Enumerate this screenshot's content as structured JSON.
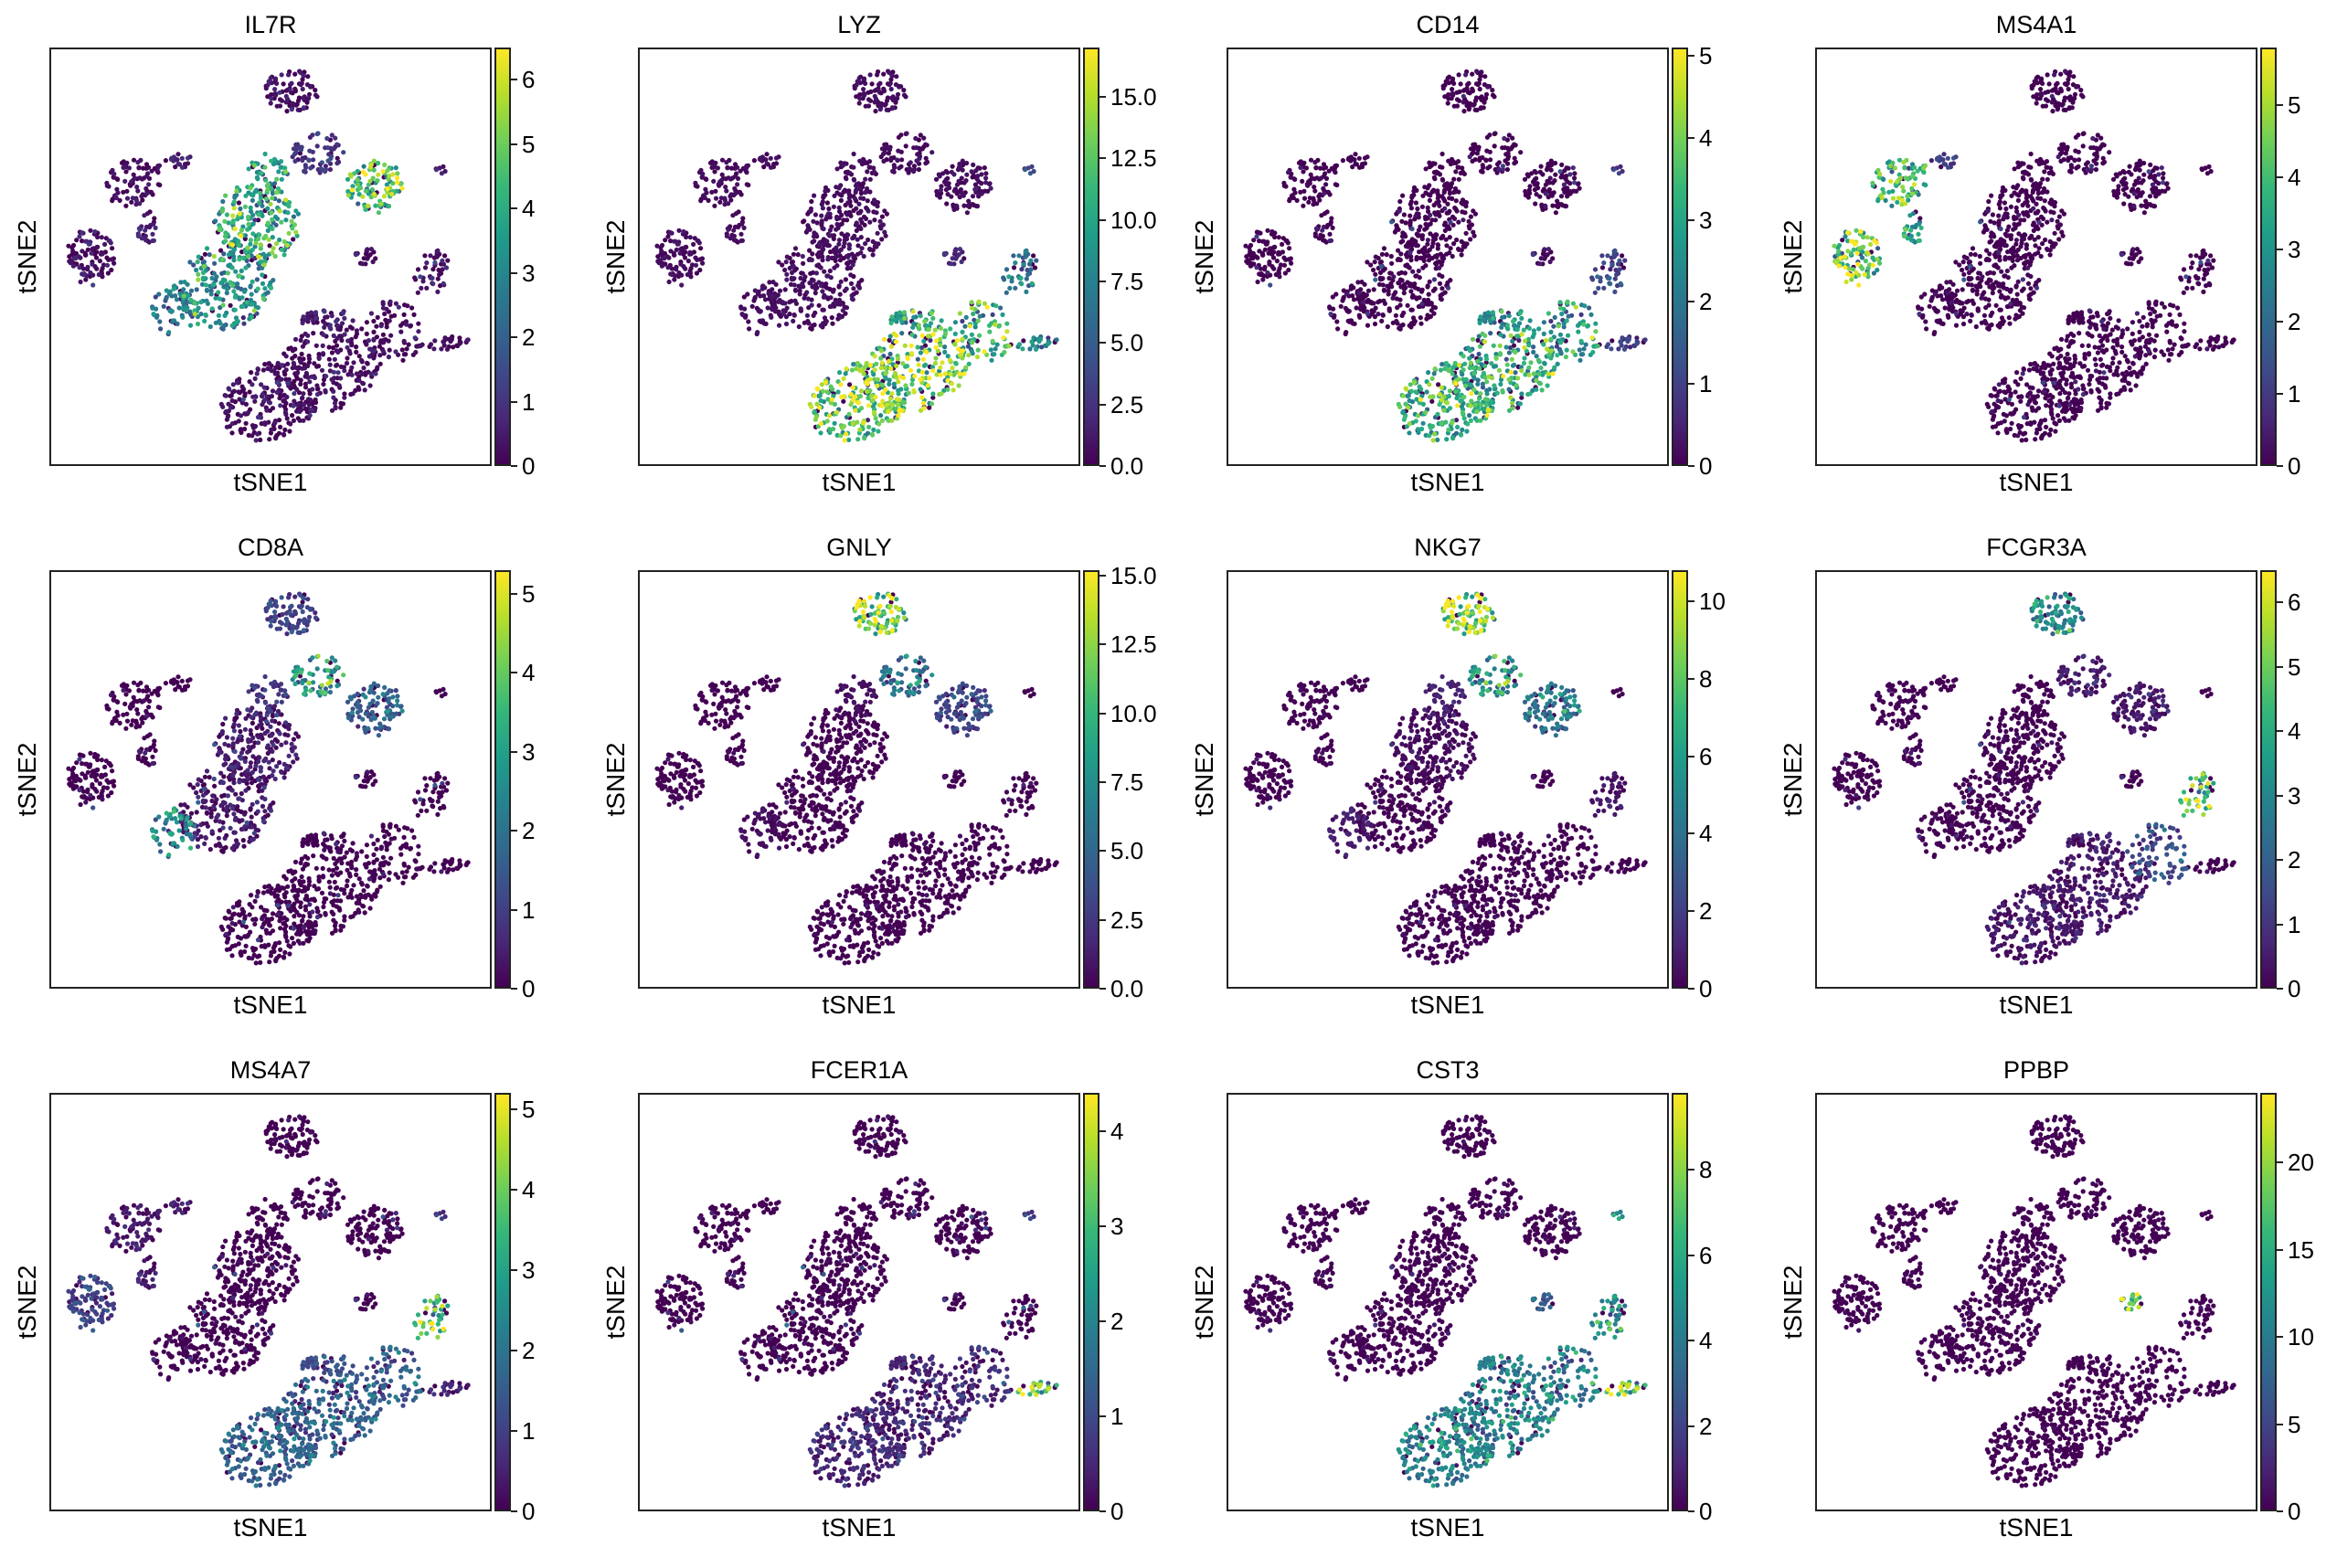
{
  "chart_data": {
    "type": "scatter",
    "xlabel": "tSNE1",
    "ylabel": "tSNE2",
    "colormap": "viridis",
    "grid": false,
    "panels": [
      {
        "title": "IL7R",
        "vmin": 0,
        "vmax": 6.5,
        "ticks": [
          "0",
          "1",
          "2",
          "3",
          "4",
          "5",
          "6"
        ],
        "mean_expression_by_cluster": [
          0.2,
          0.2,
          0.2,
          0.5,
          0.5,
          3,
          4,
          2.5,
          3.5,
          1,
          4.5,
          0.2,
          0.2,
          0.2,
          0.1,
          0.1,
          0.1,
          0.5,
          0.1,
          0.2
        ]
      },
      {
        "title": "LYZ",
        "vmin": 0,
        "vmax": 17,
        "ticks": [
          "0.0",
          "2.5",
          "5.0",
          "7.5",
          "10.0",
          "12.5",
          "15.0"
        ],
        "mean_expression_by_cluster": [
          0.5,
          0.5,
          0.5,
          0.5,
          0.5,
          0.5,
          0.5,
          0.5,
          0.5,
          0.5,
          0.5,
          2,
          6,
          3,
          12,
          13,
          11,
          10,
          8,
          8
        ]
      },
      {
        "title": "CD14",
        "vmin": 0,
        "vmax": 5.1,
        "ticks": [
          "0",
          "1",
          "2",
          "3",
          "4",
          "5"
        ],
        "mean_expression_by_cluster": [
          0,
          0,
          0,
          0,
          0,
          0,
          0,
          0,
          0,
          0,
          0,
          0.2,
          1,
          0.5,
          3,
          3,
          2.7,
          2.5,
          1,
          2
        ]
      },
      {
        "title": "MS4A1",
        "vmin": 0,
        "vmax": 5.8,
        "ticks": [
          "0",
          "1",
          "2",
          "3",
          "4",
          "5"
        ],
        "mean_expression_by_cluster": [
          0,
          4,
          4.5,
          3,
          1,
          0,
          0,
          0,
          0,
          0,
          0,
          0,
          0,
          0,
          0,
          0,
          0,
          0,
          0,
          0
        ]
      },
      {
        "title": "CD8A",
        "vmin": 0,
        "vmax": 5.3,
        "ticks": [
          "0",
          "1",
          "2",
          "3",
          "4",
          "5"
        ],
        "mean_expression_by_cluster": [
          1,
          0,
          0,
          0,
          0,
          0.2,
          0.3,
          2.5,
          0.8,
          3,
          1.5,
          0,
          0,
          0,
          0,
          0,
          0,
          0,
          0,
          0
        ]
      },
      {
        "title": "GNLY",
        "vmin": 0,
        "vmax": 15.2,
        "ticks": [
          "0.0",
          "2.5",
          "5.0",
          "7.5",
          "10.0",
          "12.5",
          "15.0"
        ],
        "mean_expression_by_cluster": [
          12,
          0,
          0,
          0,
          0,
          0,
          0,
          0.5,
          0.5,
          6,
          3,
          0,
          0,
          0,
          0,
          0,
          0,
          0,
          0,
          0
        ]
      },
      {
        "title": "NKG7",
        "vmin": 0,
        "vmax": 10.8,
        "ticks": [
          "0",
          "2",
          "4",
          "6",
          "8",
          "10"
        ],
        "mean_expression_by_cluster": [
          9,
          0,
          0,
          0,
          0,
          0,
          0.2,
          0.8,
          1,
          6,
          4,
          0,
          0.5,
          0,
          0,
          0,
          0,
          0,
          0,
          0
        ]
      },
      {
        "title": "FCGR3A",
        "vmin": 0,
        "vmax": 6.5,
        "ticks": [
          "0",
          "1",
          "2",
          "3",
          "4",
          "5",
          "6"
        ],
        "mean_expression_by_cluster": [
          3,
          0,
          0,
          0,
          0,
          0,
          0,
          0,
          0,
          0.5,
          0.3,
          0,
          4.5,
          0,
          0.2,
          0.3,
          1.5,
          0.5,
          0,
          0
        ]
      },
      {
        "title": "MS4A7",
        "vmin": 0,
        "vmax": 5.2,
        "ticks": [
          "0",
          "1",
          "2",
          "3",
          "4",
          "5"
        ],
        "mean_expression_by_cluster": [
          0,
          0.3,
          1,
          0.3,
          0.3,
          0,
          0,
          0,
          0,
          0,
          0,
          0,
          3.5,
          0.5,
          1.5,
          1.5,
          1.5,
          1.2,
          0.5,
          1
        ]
      },
      {
        "title": "FCER1A",
        "vmin": 0,
        "vmax": 4.4,
        "ticks": [
          "0",
          "1",
          "2",
          "3",
          "4"
        ],
        "mean_expression_by_cluster": [
          0,
          0,
          0,
          0,
          0,
          0,
          0,
          0,
          0,
          0,
          0,
          0,
          0,
          0.5,
          0.4,
          0.4,
          0.5,
          0.4,
          3.5,
          0.3
        ]
      },
      {
        "title": "CST3",
        "vmin": 0,
        "vmax": 9.8,
        "ticks": [
          "0",
          "2",
          "4",
          "6",
          "8"
        ],
        "mean_expression_by_cluster": [
          0,
          0,
          0,
          0,
          0,
          0,
          0,
          0,
          0,
          0,
          0,
          3,
          4.5,
          4,
          4,
          4,
          4,
          4,
          8,
          4
        ]
      },
      {
        "title": "PPBP",
        "vmin": 0,
        "vmax": 24,
        "ticks": [
          "0",
          "5",
          "10",
          "15",
          "20"
        ],
        "mean_expression_by_cluster": [
          0,
          0,
          0,
          0,
          0,
          0,
          0,
          0,
          0,
          0,
          0,
          20,
          0,
          0,
          0,
          0,
          0,
          0,
          0,
          0
        ]
      }
    ]
  }
}
